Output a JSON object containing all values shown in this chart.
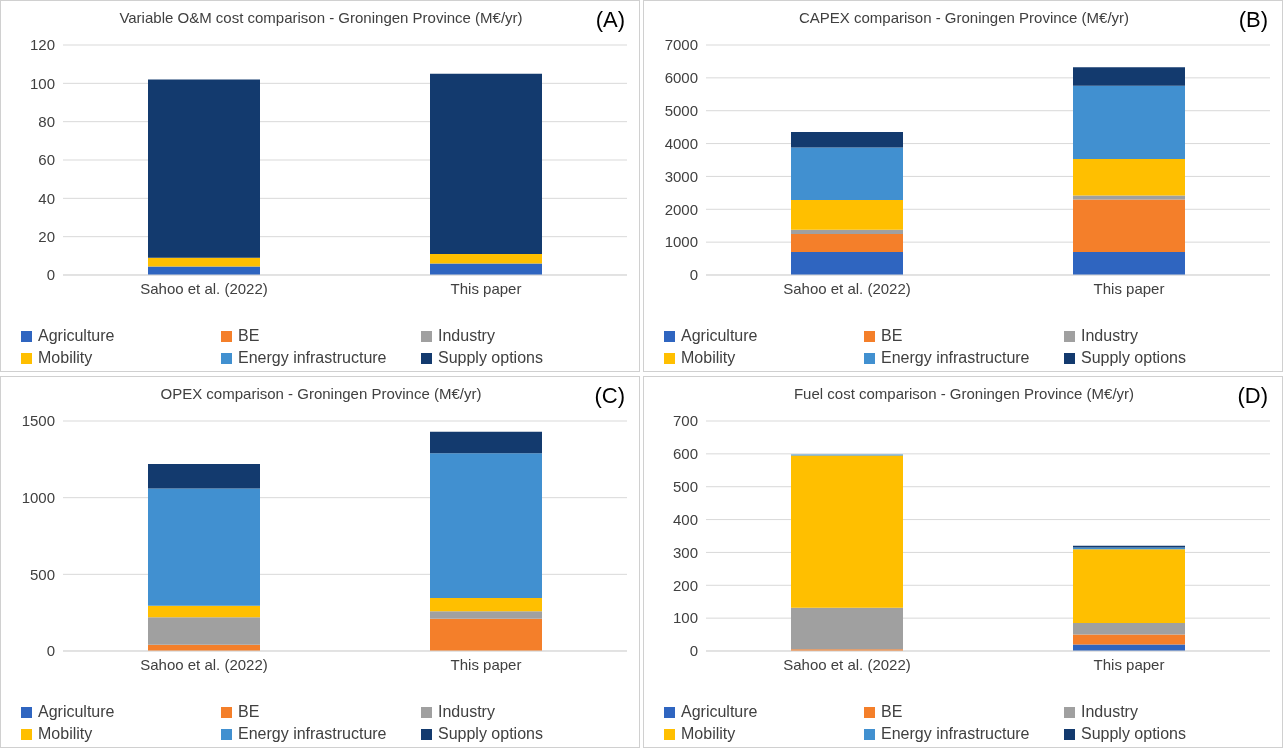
{
  "chart_data": [
    {
      "type": "bar",
      "stacked": true,
      "title": "Variable O&M cost comparison - Groningen Province (M€/yr)",
      "annotations": [
        "(A)"
      ],
      "categories": [
        "Sahoo et al. (2022)",
        "This paper"
      ],
      "ylim": [
        0,
        120
      ],
      "yticks": [
        0,
        20,
        40,
        60,
        80,
        100,
        120
      ],
      "grid": "y",
      "legend": "bottom",
      "series": [
        {
          "name": "Agriculture",
          "color": "#2f65c0",
          "values": [
            4.5,
            6
          ]
        },
        {
          "name": "BE",
          "color": "#f47f2a",
          "values": [
            0,
            0
          ]
        },
        {
          "name": "Industry",
          "color": "#a0a0a0",
          "values": [
            0,
            0
          ]
        },
        {
          "name": "Mobility",
          "color": "#ffbf00",
          "values": [
            4.5,
            5
          ]
        },
        {
          "name": "Energy infrastructure",
          "color": "#4190d0",
          "values": [
            0,
            0
          ]
        },
        {
          "name": "Supply options",
          "color": "#133a6e",
          "values": [
            93,
            94
          ]
        }
      ]
    },
    {
      "type": "bar",
      "stacked": true,
      "title": "CAPEX comparison - Groningen Province (M€/yr)",
      "annotations": [
        "(B)"
      ],
      "categories": [
        "Sahoo et al. (2022)",
        "This paper"
      ],
      "ylim": [
        0,
        7000
      ],
      "yticks": [
        0,
        1000,
        2000,
        3000,
        4000,
        5000,
        6000,
        7000
      ],
      "grid": "y",
      "legend": "bottom",
      "series": [
        {
          "name": "Agriculture",
          "color": "#2f65c0",
          "values": [
            700,
            700
          ]
        },
        {
          "name": "BE",
          "color": "#f47f2a",
          "values": [
            550,
            1600
          ]
        },
        {
          "name": "Industry",
          "color": "#a0a0a0",
          "values": [
            130,
            120
          ]
        },
        {
          "name": "Mobility",
          "color": "#ffbf00",
          "values": [
            900,
            1110
          ]
        },
        {
          "name": "Energy infrastructure",
          "color": "#4190d0",
          "values": [
            1600,
            2230
          ]
        },
        {
          "name": "Supply options",
          "color": "#133a6e",
          "values": [
            470,
            560
          ]
        }
      ]
    },
    {
      "type": "bar",
      "stacked": true,
      "title": "OPEX comparison - Groningen Province (M€/yr)",
      "annotations": [
        "(C)"
      ],
      "categories": [
        "Sahoo et al. (2022)",
        "This paper"
      ],
      "ylim": [
        0,
        1500
      ],
      "yticks": [
        0,
        500,
        1000,
        1500
      ],
      "grid": "y",
      "legend": "bottom",
      "series": [
        {
          "name": "Agriculture",
          "color": "#2f65c0",
          "values": [
            0,
            0
          ]
        },
        {
          "name": "BE",
          "color": "#f47f2a",
          "values": [
            40,
            210
          ]
        },
        {
          "name": "Industry",
          "color": "#a0a0a0",
          "values": [
            180,
            50
          ]
        },
        {
          "name": "Mobility",
          "color": "#ffbf00",
          "values": [
            75,
            85
          ]
        },
        {
          "name": "Energy infrastructure",
          "color": "#4190d0",
          "values": [
            765,
            945
          ]
        },
        {
          "name": "Supply options",
          "color": "#133a6e",
          "values": [
            160,
            140
          ]
        }
      ]
    },
    {
      "type": "bar",
      "stacked": true,
      "title": "Fuel cost comparison - Groningen Province (M€/yr)",
      "annotations": [
        "(D)"
      ],
      "categories": [
        "Sahoo et al. (2022)",
        "This paper"
      ],
      "ylim": [
        0,
        700
      ],
      "yticks": [
        0,
        100,
        200,
        300,
        400,
        500,
        600,
        700
      ],
      "grid": "y",
      "legend": "bottom",
      "series": [
        {
          "name": "Agriculture",
          "color": "#2f65c0",
          "values": [
            0,
            20
          ]
        },
        {
          "name": "BE",
          "color": "#f47f2a",
          "values": [
            5,
            30
          ]
        },
        {
          "name": "Industry",
          "color": "#a0a0a0",
          "values": [
            127,
            35
          ]
        },
        {
          "name": "Mobility",
          "color": "#ffbf00",
          "values": [
            463,
            225
          ]
        },
        {
          "name": "Energy infrastructure",
          "color": "#4190d0",
          "values": [
            3,
            5
          ]
        },
        {
          "name": "Supply options",
          "color": "#133a6e",
          "values": [
            0,
            5
          ]
        }
      ]
    }
  ]
}
